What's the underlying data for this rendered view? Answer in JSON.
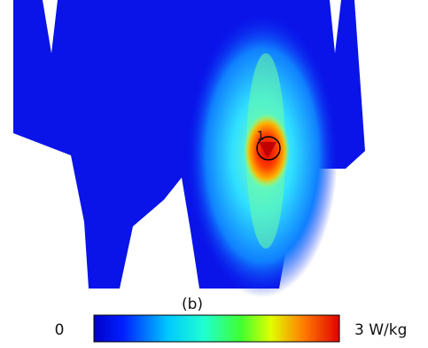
{
  "marker_label": "1",
  "caption": "(b)",
  "colorbar": {
    "min_label": "0",
    "max_label": "3 W/kg"
  }
}
